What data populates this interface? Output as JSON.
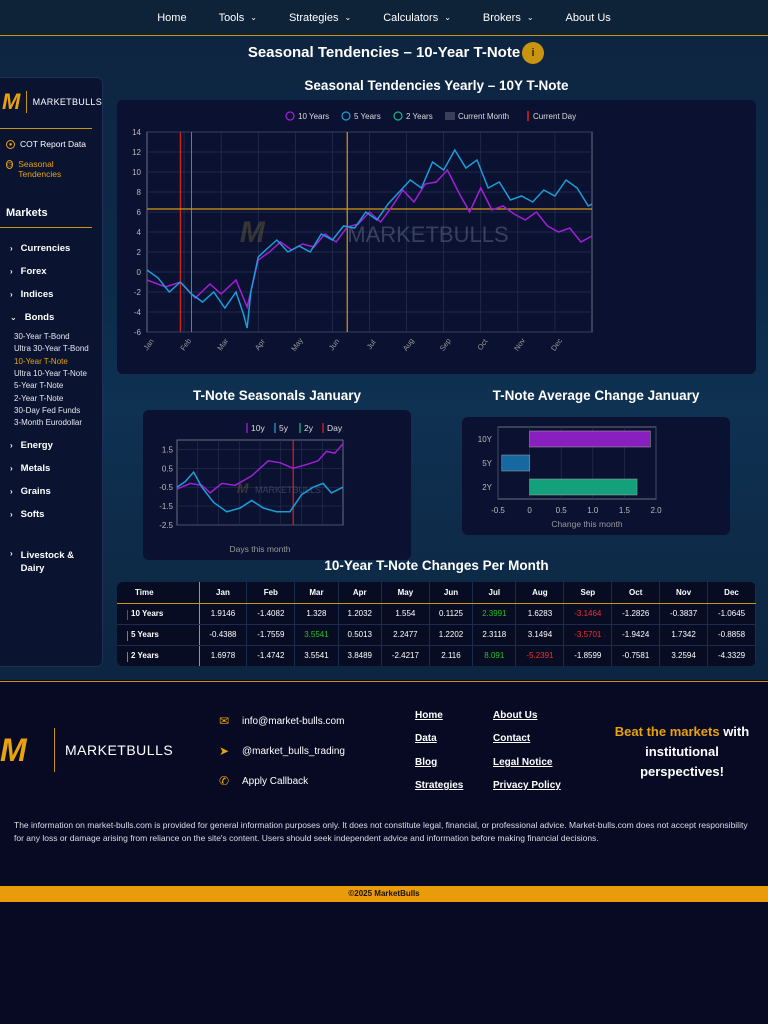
{
  "nav": [
    {
      "label": "Home",
      "dd": false
    },
    {
      "label": "Tools",
      "dd": true
    },
    {
      "label": "Strategies",
      "dd": true
    },
    {
      "label": "Calculators",
      "dd": true
    },
    {
      "label": "Brokers",
      "dd": true
    },
    {
      "label": "About Us",
      "dd": false
    }
  ],
  "page_title": "Seasonal Tendencies – 10-Year T-Note",
  "info_icon": "i",
  "sidebar": {
    "logo_text": "MARKETBULLS",
    "links": [
      {
        "label": "COT Report Data",
        "icon": "chart-pie-icon"
      },
      {
        "label": "Seasonal Tendencies",
        "icon": "clock-icon",
        "active": true
      }
    ],
    "markets_title": "Markets",
    "categories": [
      "Currencies",
      "Forex",
      "Indices",
      "Bonds",
      "Energy",
      "Metals",
      "Grains",
      "Softs",
      "Livestock & Dairy"
    ],
    "bond_items": [
      "30-Year T-Bond",
      "Ultra 30-Year T-Bond",
      "10-Year T-Note",
      "Ultra 10-Year T-Note",
      "5-Year T-Note",
      "2-Year T-Note",
      "30-Day Fed Funds",
      "3-Month Eurodollar"
    ]
  },
  "yearly_title": "Seasonal Tendencies Yearly – 10Y T-Note",
  "january_title": "T-Note Seasonals January",
  "avg_title": "T-Note Average Change January",
  "table_title": "10-Year T-Note Changes Per Month",
  "watermark": "MARKETBULLS",
  "chart_data": [
    {
      "type": "line",
      "legend": [
        "10 Years",
        "5 Years",
        "2 Years",
        "Current Month",
        "Current Day"
      ],
      "x_ticks": [
        "Jan",
        "Feb",
        "Mar",
        "Apr",
        "May",
        "Jun",
        "Jul",
        "Aug",
        "Sep",
        "Oct",
        "Nov",
        "Dec"
      ],
      "ylim": [
        -6,
        14
      ],
      "y_ticks": [
        "14",
        "12",
        "10",
        "8",
        "6",
        "4",
        "2",
        "0",
        "-2",
        "-4",
        "-6"
      ],
      "current_day_month": 0.9,
      "current_month_end": 1.2,
      "current_june": 5.4,
      "hline": 6.3,
      "series": [
        {
          "name": "10 Years",
          "color": "#a020d8",
          "points": [
            [
              0,
              -0.8
            ],
            [
              0.5,
              -1.5
            ],
            [
              0.9,
              -1
            ],
            [
              1.3,
              -2.6
            ],
            [
              1.7,
              -1.2
            ],
            [
              2.0,
              -2.2
            ],
            [
              2.4,
              -0.8
            ],
            [
              2.7,
              -3.5
            ],
            [
              3.0,
              1.2
            ],
            [
              3.3,
              2.0
            ],
            [
              3.6,
              3.0
            ],
            [
              3.9,
              2.2
            ],
            [
              4.2,
              2.8
            ],
            [
              4.5,
              2.5
            ],
            [
              4.8,
              3.8
            ],
            [
              5.1,
              3.0
            ],
            [
              5.4,
              4.5
            ],
            [
              5.7,
              4.8
            ],
            [
              6.0,
              6.0
            ],
            [
              6.3,
              5.0
            ],
            [
              6.6,
              6.5
            ],
            [
              6.9,
              8.2
            ],
            [
              7.2,
              7.0
            ],
            [
              7.5,
              8.8
            ],
            [
              7.8,
              9.0
            ],
            [
              8.1,
              10.2
            ],
            [
              8.4,
              8.0
            ],
            [
              8.7,
              6.0
            ],
            [
              9.0,
              8.4
            ],
            [
              9.3,
              6.2
            ],
            [
              9.6,
              6.6
            ],
            [
              9.9,
              5.8
            ],
            [
              10.2,
              5.2
            ],
            [
              10.5,
              6.0
            ],
            [
              10.8,
              4.6
            ],
            [
              11.1,
              4.0
            ],
            [
              11.4,
              4.4
            ],
            [
              11.7,
              3.0
            ],
            [
              12.0,
              3.6
            ]
          ]
        },
        {
          "name": "5 Years",
          "color": "#1b9ed8",
          "points": [
            [
              0,
              0.2
            ],
            [
              0.3,
              -0.6
            ],
            [
              0.6,
              -2.0
            ],
            [
              0.9,
              -1.0
            ],
            [
              1.2,
              -2.2
            ],
            [
              1.5,
              -3.0
            ],
            [
              1.8,
              -2.0
            ],
            [
              2.1,
              -3.6
            ],
            [
              2.4,
              -2.0
            ],
            [
              2.6,
              -4.2
            ],
            [
              2.7,
              -5.6
            ],
            [
              2.8,
              -2.0
            ],
            [
              3.0,
              1.5
            ],
            [
              3.2,
              2.2
            ],
            [
              3.5,
              3.2
            ],
            [
              3.8,
              2.0
            ],
            [
              4.1,
              2.6
            ],
            [
              4.4,
              2.0
            ],
            [
              4.7,
              3.8
            ],
            [
              5.0,
              3.2
            ],
            [
              5.3,
              4.6
            ],
            [
              5.6,
              4.4
            ],
            [
              5.9,
              6.0
            ],
            [
              6.2,
              5.2
            ],
            [
              6.5,
              6.8
            ],
            [
              6.8,
              8.0
            ],
            [
              7.1,
              9.2
            ],
            [
              7.4,
              8.4
            ],
            [
              7.7,
              11.0
            ],
            [
              8.0,
              10.2
            ],
            [
              8.3,
              12.2
            ],
            [
              8.6,
              10.4
            ],
            [
              8.9,
              11.2
            ],
            [
              9.2,
              8.4
            ],
            [
              9.5,
              9.0
            ],
            [
              9.8,
              7.2
            ],
            [
              10.1,
              7.6
            ],
            [
              10.4,
              7.0
            ],
            [
              10.7,
              8.2
            ],
            [
              11.0,
              7.6
            ],
            [
              11.3,
              9.2
            ],
            [
              11.6,
              8.4
            ],
            [
              11.9,
              6.6
            ],
            [
              12.0,
              6.8
            ]
          ]
        }
      ]
    },
    {
      "type": "line",
      "legend": [
        "10y",
        "5y",
        "2y",
        "Day"
      ],
      "xlabel": "Days this month",
      "y_ticks": [
        "1.5",
        "0.5",
        "-0.5",
        "-1.5",
        "-2.5"
      ],
      "ylim": [
        -2.5,
        2
      ],
      "current_day": 0.7,
      "series": [
        {
          "name": "10y",
          "color": "#a020d8",
          "points": [
            [
              0,
              -0.6
            ],
            [
              0.08,
              -0.3
            ],
            [
              0.15,
              -0.4
            ],
            [
              0.2,
              -0.8
            ],
            [
              0.27,
              -0.3
            ],
            [
              0.35,
              -0.4
            ],
            [
              0.45,
              0.1
            ],
            [
              0.55,
              0.9
            ],
            [
              0.62,
              0.8
            ],
            [
              0.7,
              0.5
            ],
            [
              0.78,
              0.7
            ],
            [
              0.85,
              0.9
            ],
            [
              0.9,
              1.4
            ],
            [
              0.95,
              1.3
            ],
            [
              1.0,
              1.8
            ]
          ]
        },
        {
          "name": "5y",
          "color": "#1b9ed8",
          "points": [
            [
              0,
              -0.5
            ],
            [
              0.05,
              -0.2
            ],
            [
              0.1,
              0.3
            ],
            [
              0.15,
              -0.5
            ],
            [
              0.22,
              -1.3
            ],
            [
              0.3,
              -1.8
            ],
            [
              0.38,
              -1.6
            ],
            [
              0.45,
              -1.2
            ],
            [
              0.52,
              -1.6
            ],
            [
              0.6,
              -1.8
            ],
            [
              0.68,
              -1.8
            ],
            [
              0.75,
              -0.9
            ],
            [
              0.82,
              -0.5
            ],
            [
              0.88,
              -0.3
            ],
            [
              0.93,
              -0.8
            ],
            [
              1.0,
              -0.5
            ]
          ]
        }
      ]
    },
    {
      "type": "bar",
      "orientation": "horizontal",
      "categories": [
        "10Y",
        "5Y",
        "2Y"
      ],
      "values": [
        1.91,
        -0.44,
        1.7
      ],
      "colors": [
        "#8a1fbf",
        "#1568a0",
        "#14a07a"
      ],
      "xlabel": "Change this month",
      "xlim": [
        -0.5,
        2.0
      ],
      "x_ticks": [
        "-0.5",
        "0",
        "0.5",
        "1.0",
        "1.5",
        "2.0"
      ]
    }
  ],
  "table": {
    "headers": [
      "Time",
      "Jan",
      "Feb",
      "Mar",
      "Apr",
      "May",
      "Jun",
      "Jul",
      "Aug",
      "Sep",
      "Oct",
      "Nov",
      "Dec"
    ],
    "rows": [
      {
        "label": "10 Years",
        "cells": [
          "1.9146",
          "-1.4082",
          "1.328",
          "1.2032",
          "1.554",
          "0.1125",
          "2.3991",
          "1.6283",
          "-3.1464",
          "-1.2826",
          "-0.3837",
          "-1.0645"
        ],
        "hl": {
          "6": "pos",
          "8": "neg"
        }
      },
      {
        "label": "5 Years",
        "cells": [
          "-0.4388",
          "-1.7559",
          "3.5541",
          "0.5013",
          "2.2477",
          "1.2202",
          "2.3118",
          "3.1494",
          "-3.5701",
          "-1.9424",
          "1.7342",
          "-0.8858"
        ],
        "hl": {
          "2": "pos",
          "8": "neg"
        }
      },
      {
        "label": "2 Years",
        "cells": [
          "1.6978",
          "-1.4742",
          "3.5541",
          "3.8489",
          "-2.4217",
          "2.116",
          "8.091",
          "-5.2391",
          "-1.8599",
          "-0.7581",
          "3.2594",
          "-4.3329"
        ],
        "hl": {
          "6": "pos",
          "7": "neg"
        }
      }
    ]
  },
  "footer": {
    "logo_text": "MARKETBULLS",
    "contacts": [
      {
        "icon": "mail-icon",
        "text": "info@market-bulls.com"
      },
      {
        "icon": "telegram-icon",
        "text": "@market_bulls_trading"
      },
      {
        "icon": "phone-icon",
        "text": "Apply Callback"
      }
    ],
    "links_col1": [
      "Home",
      "Data",
      "Blog",
      "Strategies"
    ],
    "links_col2": [
      "About Us",
      "Contact",
      "Legal Notice",
      "Privacy Policy"
    ],
    "beat_highlight": "Beat the markets",
    "beat_rest": " with institutional perspectives!",
    "disclaimer": "The information on market-bulls.com is provided for general information purposes only. It does not constitute legal, financial, or professional advice. Market-bulls.com does not accept responsibility for any loss or damage arising from reliance on the site's content. Users should seek independent advice and information before making financial decisions.",
    "copyright": "©2025 MarketBulls"
  }
}
